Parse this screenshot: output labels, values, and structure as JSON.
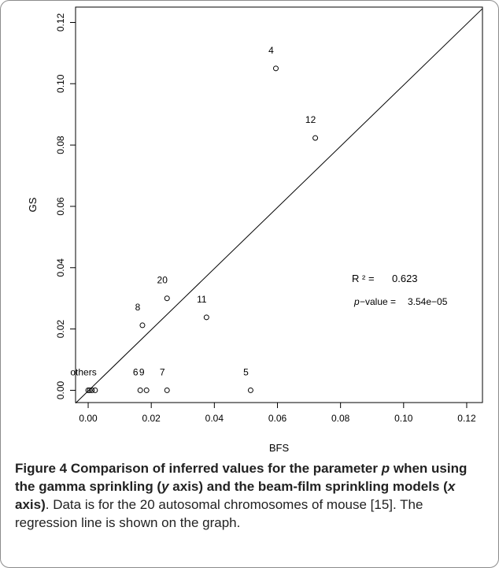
{
  "chart_data": {
    "type": "scatter",
    "xlabel": "BFS",
    "ylabel": "GS",
    "xlim": [
      -0.004,
      0.125
    ],
    "ylim": [
      -0.004,
      0.125
    ],
    "x_ticks": [
      "0.00",
      "0.02",
      "0.04",
      "0.06",
      "0.08",
      "0.10",
      "0.12"
    ],
    "y_ticks": [
      "0.00",
      "0.02",
      "0.04",
      "0.06",
      "0.08",
      "0.10",
      "0.12"
    ],
    "grid": false,
    "points": [
      {
        "label": "4",
        "x": 0.0595,
        "y": 0.105
      },
      {
        "label": "12",
        "x": 0.072,
        "y": 0.0823
      },
      {
        "label": "20",
        "x": 0.025,
        "y": 0.03
      },
      {
        "label": "8",
        "x": 0.0172,
        "y": 0.0212
      },
      {
        "label": "11",
        "x": 0.0375,
        "y": 0.0238
      },
      {
        "label": "6",
        "x": 0.0165,
        "y": 0.0
      },
      {
        "label": "9",
        "x": 0.0185,
        "y": 0.0
      },
      {
        "label": "7",
        "x": 0.025,
        "y": 0.0
      },
      {
        "label": "5",
        "x": 0.0515,
        "y": 0.0
      },
      {
        "label": "others",
        "x": 0.0,
        "y": 0.0
      },
      {
        "label": "",
        "x": 0.0005,
        "y": 0.0
      },
      {
        "label": "",
        "x": 0.0012,
        "y": 0.0
      },
      {
        "label": "",
        "x": 0.0022,
        "y": 0.0
      }
    ],
    "regression_line": {
      "x": [
        -0.004,
        0.125
      ],
      "y": [
        -0.0042,
        0.1245
      ]
    },
    "annotations": {
      "r2_label": "R ² =",
      "r2_value": "0.623",
      "pvalue_italic": "p",
      "pvalue_label": "−value =",
      "pvalue_value": "3.54e−05"
    }
  },
  "caption": {
    "bold_prefix": "Figure 4 Comparison of inferred values for the parameter ",
    "bold_p": "p",
    "bold_mid1": " when using the gamma sprinkling (",
    "bold_y": "y",
    "bold_mid2": " axis) and the beam-film sprinkling models (",
    "bold_x": "x",
    "bold_suffix": " axis)",
    "body": ". Data is for the 20 autosomal chromosomes of mouse [15]. The regression line is shown on the graph."
  }
}
